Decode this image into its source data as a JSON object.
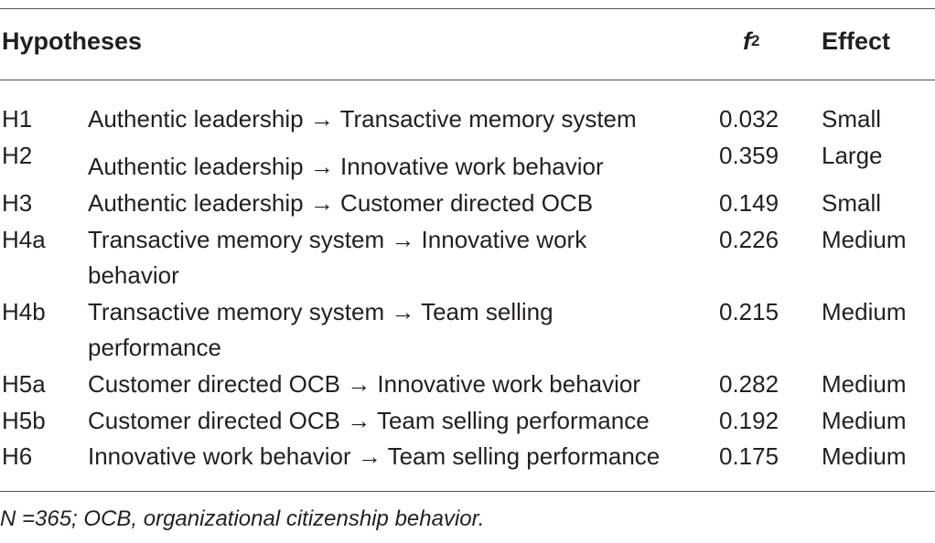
{
  "table": {
    "headers": {
      "hypotheses": "Hypotheses",
      "f_symbol": "f",
      "f_exponent": "2",
      "effect": "Effect"
    },
    "rows": [
      {
        "id": "H1",
        "hypothesis": "Authentic leadership → Transactive memory system",
        "f2": "0.032",
        "effect": "Small"
      },
      {
        "id": "H2",
        "hypothesis": "Authentic leadership → Innovative work behavior",
        "f2": "0.359",
        "effect": "Large"
      },
      {
        "id": "H3",
        "hypothesis": "Authentic leadership → Customer directed OCB",
        "f2": "0.149",
        "effect": "Small"
      },
      {
        "id": "H4a",
        "hypothesis": "Transactive memory system → Innovative work behavior",
        "f2": "0.226",
        "effect": "Medium"
      },
      {
        "id": "H4b",
        "hypothesis": "Transactive memory system → Team selling performance",
        "f2": "0.215",
        "effect": "Medium"
      },
      {
        "id": "H5a",
        "hypothesis": "Customer directed OCB → Innovative work behavior",
        "f2": "0.282",
        "effect": "Medium"
      },
      {
        "id": "H5b",
        "hypothesis": "Customer directed OCB → Team selling performance",
        "f2": "0.192",
        "effect": "Medium"
      },
      {
        "id": "H6",
        "hypothesis": "Innovative work behavior → Team selling performance",
        "f2": "0.175",
        "effect": "Medium"
      }
    ],
    "footnote": "N =365; OCB, organizational citizenship behavior."
  }
}
